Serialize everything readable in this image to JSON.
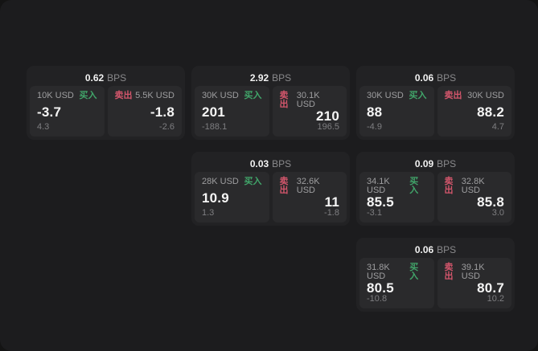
{
  "labels": {
    "bps_unit": "BPS",
    "buy": "买入",
    "sell": "卖出"
  },
  "colors": {
    "window_bg": "#1c1c1e",
    "card_bg": "#222224",
    "panel_bg": "#2a2a2c",
    "buy_green": "#41a56a",
    "sell_red": "#d4566c",
    "value_white": "#f5f5f5",
    "label_gray": "#9e9ea0",
    "sub_gray": "#7e7e81"
  },
  "cards": [
    {
      "bps": "0.62",
      "row": "1",
      "col": "1",
      "buy": {
        "amount": "10K USD",
        "value": "-3.7",
        "sub": "4.3"
      },
      "sell": {
        "amount": "5.5K USD",
        "value": "-1.8",
        "sub": "-2.6"
      }
    },
    {
      "bps": "2.92",
      "row": "1",
      "col": "2",
      "buy": {
        "amount": "30K USD",
        "value": "201",
        "sub": "-188.1"
      },
      "sell": {
        "amount": "30.1K USD",
        "value": "210",
        "sub": "196.5"
      }
    },
    {
      "bps": "0.06",
      "row": "1",
      "col": "3",
      "buy": {
        "amount": "30K USD",
        "value": "88",
        "sub": "-4.9"
      },
      "sell": {
        "amount": "30K USD",
        "value": "88.2",
        "sub": "4.7"
      }
    },
    {
      "bps": "0.03",
      "row": "2",
      "col": "2",
      "buy": {
        "amount": "28K USD",
        "value": "10.9",
        "sub": "1.3"
      },
      "sell": {
        "amount": "32.6K USD",
        "value": "11",
        "sub": "-1.8"
      }
    },
    {
      "bps": "0.09",
      "row": "2",
      "col": "3",
      "buy": {
        "amount": "34.1K USD",
        "value": "85.5",
        "sub": "-3.1"
      },
      "sell": {
        "amount": "32.8K USD",
        "value": "85.8",
        "sub": "3.0"
      }
    },
    {
      "bps": "0.06",
      "row": "3",
      "col": "3",
      "buy": {
        "amount": "31.8K USD",
        "value": "80.5",
        "sub": "-10.8"
      },
      "sell": {
        "amount": "39.1K USD",
        "value": "80.7",
        "sub": "10.2"
      }
    }
  ]
}
